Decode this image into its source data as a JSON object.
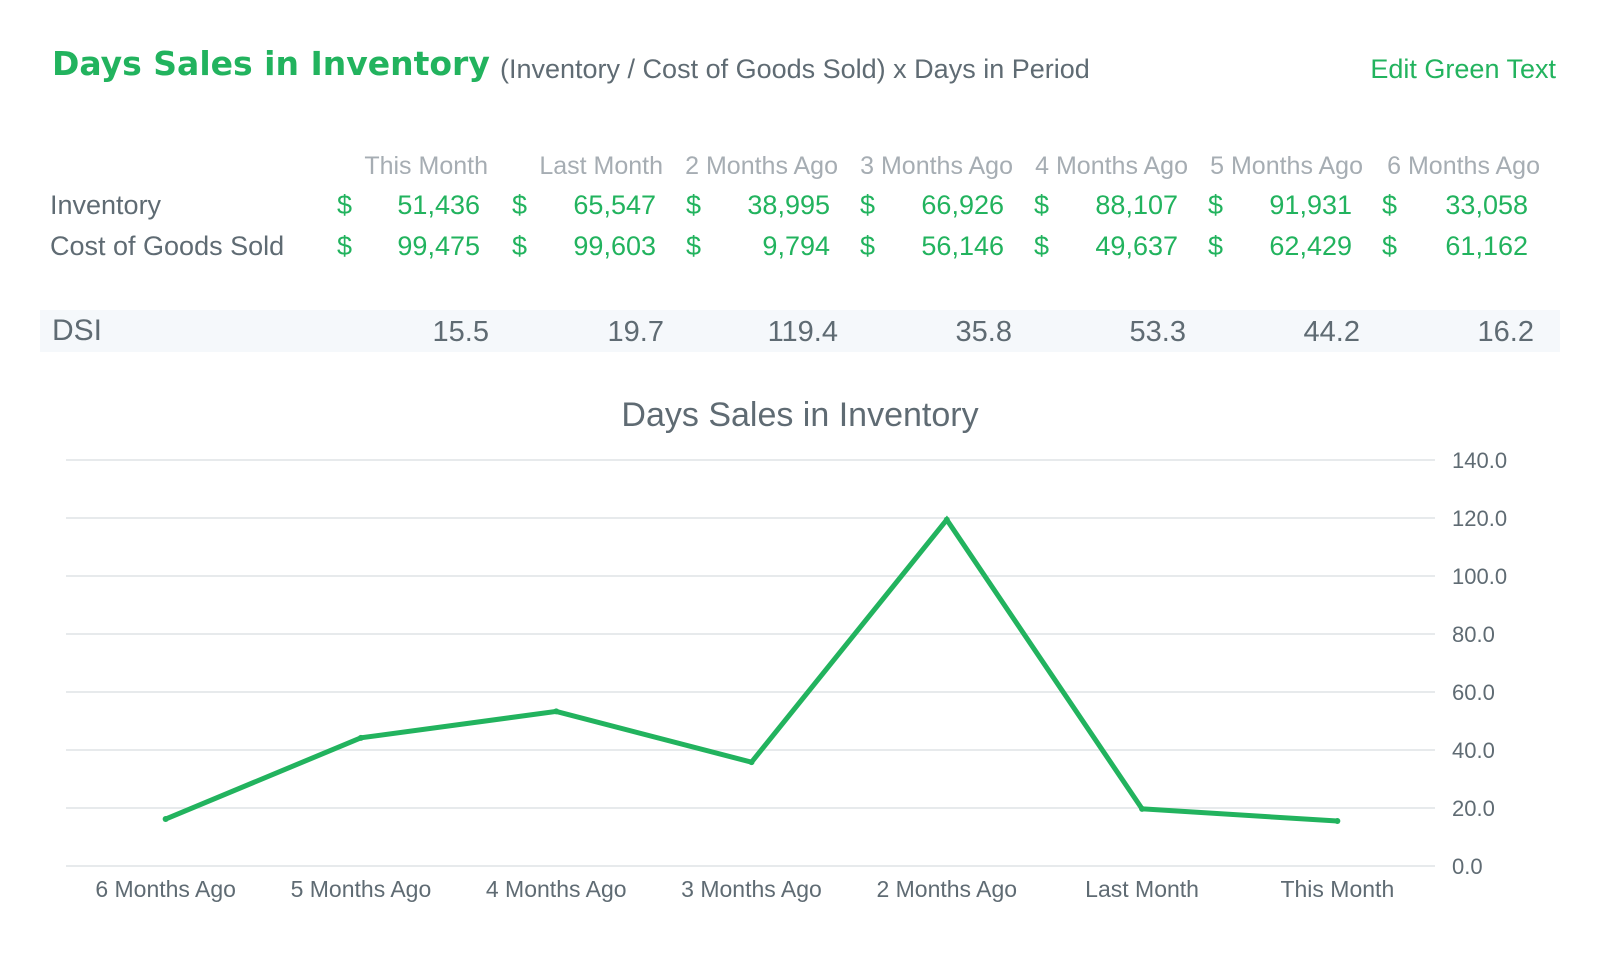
{
  "header": {
    "title": "Days Sales in Inventory",
    "formula": "(Inventory / Cost of Goods Sold) x Days in Period",
    "edit_link": "Edit Green Text"
  },
  "table": {
    "columns": [
      "This Month",
      "Last Month",
      "2 Months Ago",
      "3 Months Ago",
      "4 Months Ago",
      "5 Months Ago",
      "6 Months Ago"
    ],
    "currency_symbol": "$",
    "rows": [
      {
        "label": "Inventory",
        "values": [
          "51,436",
          "65,547",
          "38,995",
          "66,926",
          "88,107",
          "91,931",
          "33,058"
        ]
      },
      {
        "label": "Cost of Goods Sold",
        "values": [
          "99,475",
          "99,603",
          "9,794",
          "56,146",
          "49,637",
          "62,429",
          "61,162"
        ]
      }
    ],
    "dsi": {
      "label": "DSI",
      "values": [
        "15.5",
        "19.7",
        "119.4",
        "35.8",
        "53.3",
        "44.2",
        "16.2"
      ]
    }
  },
  "chart_data": {
    "type": "line",
    "title": "Days Sales in Inventory",
    "categories": [
      "6 Months Ago",
      "5 Months Ago",
      "4 Months Ago",
      "3 Months Ago",
      "2 Months Ago",
      "Last Month",
      "This Month"
    ],
    "series": [
      {
        "values": [
          16.2,
          44.2,
          53.3,
          35.8,
          119.4,
          19.7,
          15.5
        ],
        "color": "#22b35e"
      }
    ],
    "ylim": [
      0,
      140
    ],
    "yticks": [
      0,
      20,
      40,
      60,
      80,
      100,
      120,
      140
    ],
    "ytick_labels": [
      "0.0",
      "20.0",
      "40.0",
      "60.0",
      "80.0",
      "100.0",
      "120.0",
      "140.0"
    ],
    "y_axis_side": "right",
    "grid": true,
    "xlabel": "",
    "ylabel": ""
  },
  "colors": {
    "accent": "#22b35e",
    "text": "#5f6b73",
    "muted": "#a6adb3",
    "grid": "#dfe3e6",
    "band": "#f5f8fb"
  }
}
